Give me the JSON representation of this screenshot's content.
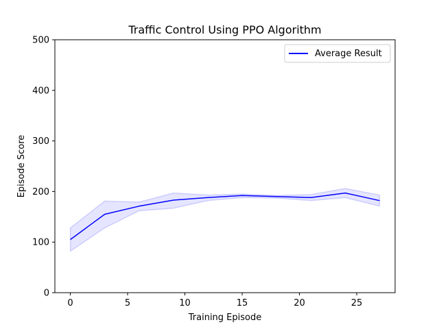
{
  "chart_data": {
    "type": "line",
    "title": "Traffic Control Using PPO Algorithm",
    "xlabel": "Training Episode",
    "ylabel": "Episode Score",
    "xlim": [
      -1.35,
      28.35
    ],
    "ylim": [
      0,
      500
    ],
    "xticks": [
      0,
      5,
      10,
      15,
      20,
      25
    ],
    "yticks": [
      0,
      100,
      200,
      300,
      400,
      500
    ],
    "grid": false,
    "legend_position": "top-right",
    "series": [
      {
        "name": "Average Result",
        "color": "#0000ff",
        "band_color": "#0000ff",
        "x": [
          0,
          3,
          6,
          9,
          12,
          15,
          18,
          21,
          24,
          27
        ],
        "values": [
          105,
          155,
          171,
          183,
          188,
          192,
          190,
          188,
          197,
          182
        ],
        "lower": [
          82,
          128,
          162,
          167,
          182,
          188,
          187,
          182,
          188,
          171
        ],
        "upper": [
          128,
          181,
          179,
          197,
          193,
          195,
          192,
          194,
          206,
          193
        ]
      }
    ]
  }
}
